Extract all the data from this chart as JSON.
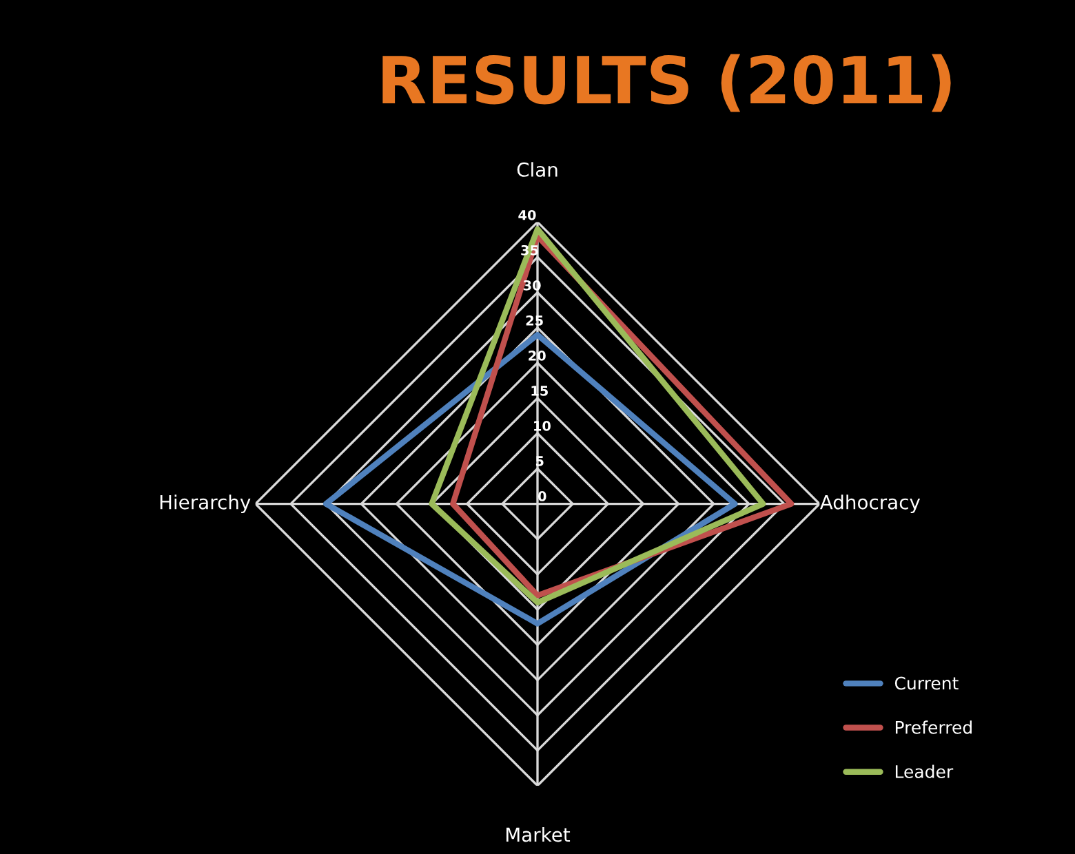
{
  "chart_data": {
    "type": "radar",
    "title": "RESULTS (2011)",
    "categories": [
      "Clan",
      "Adhocracy",
      "Market",
      "Hierarchy"
    ],
    "series": [
      {
        "name": "Current",
        "color": "#4f81bd",
        "values": [
          24,
          28,
          17,
          30
        ]
      },
      {
        "name": "Preferred",
        "color": "#c0504d",
        "values": [
          38,
          36,
          13,
          12
        ]
      },
      {
        "name": "Leader",
        "color": "#9bbb59",
        "values": [
          39,
          32,
          14,
          15
        ]
      }
    ],
    "ylim": [
      0,
      40
    ],
    "yticks": [
      0,
      5,
      10,
      15,
      20,
      25,
      30,
      35,
      40
    ],
    "grid": true,
    "legend": "bottom right",
    "marker": "none",
    "line_style": "solid"
  }
}
